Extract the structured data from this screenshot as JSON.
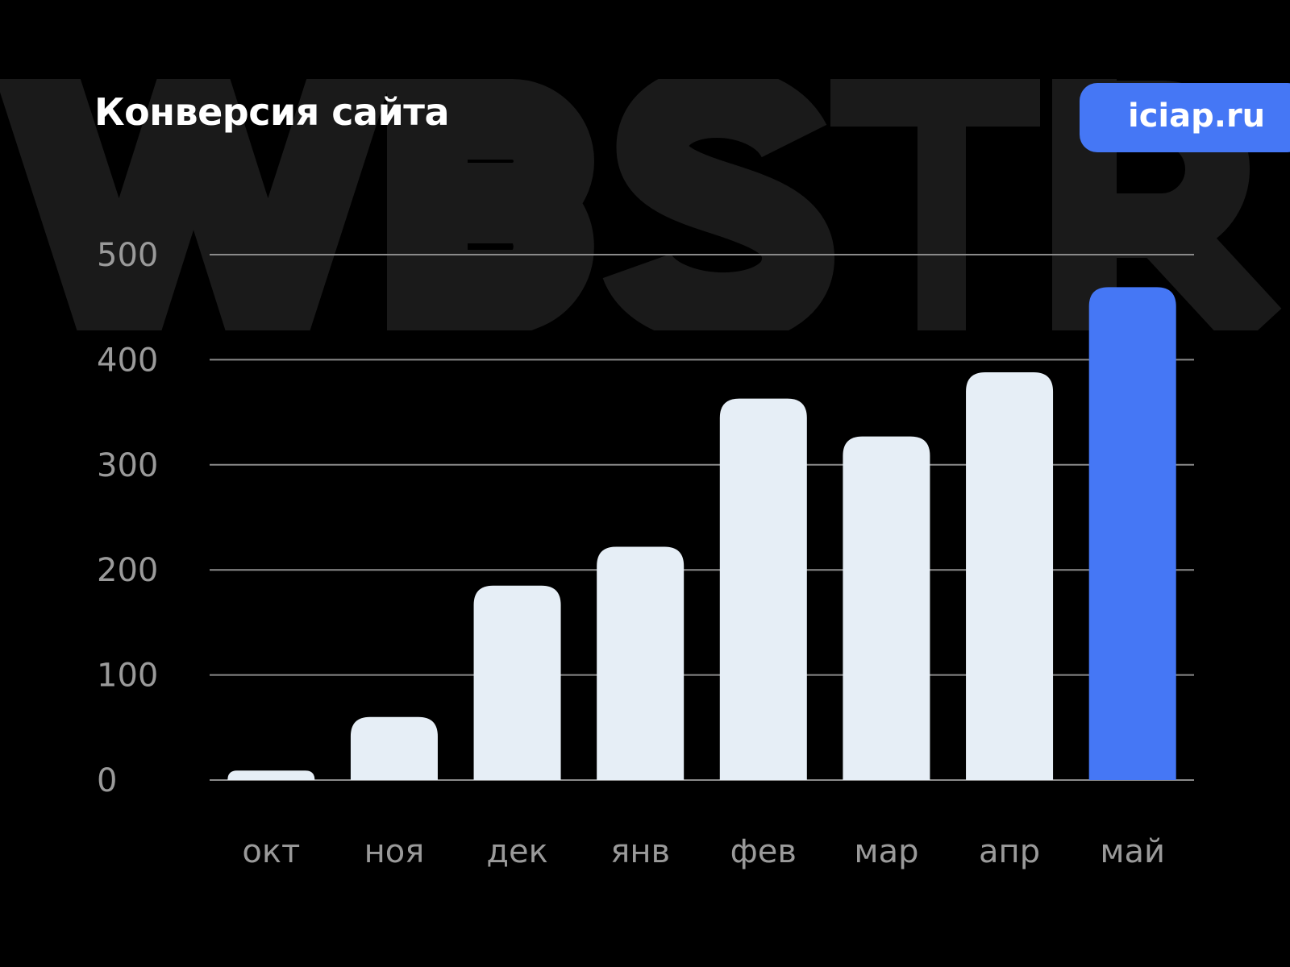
{
  "watermark": "WBSTR",
  "title": "Конверсия сайта",
  "badge": "iciap.ru",
  "colors": {
    "background": "#000000",
    "bar": "#e6eef6",
    "highlight": "#4577f5",
    "grid": "#8a8a8a",
    "watermark": "#1a1a1a",
    "tick_text": "#9a9a9a"
  },
  "chart_data": {
    "type": "bar",
    "title": "Конверсия сайта",
    "categories": [
      "окт",
      "ноя",
      "дек",
      "янв",
      "фев",
      "мар",
      "апр",
      "май"
    ],
    "values": [
      9,
      60,
      185,
      222,
      363,
      327,
      388,
      469
    ],
    "highlight_index": 7,
    "yticks": [
      0,
      100,
      200,
      300,
      400,
      500
    ],
    "ylim": [
      0,
      500
    ],
    "grid": true,
    "xlabel": "",
    "ylabel": ""
  }
}
